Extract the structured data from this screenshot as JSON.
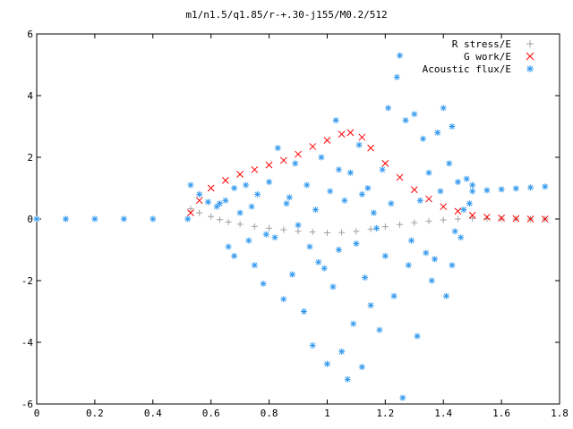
{
  "chart_data": {
    "type": "scatter",
    "title": "m1/n1.5/q1.85/r-+.30-j155/M0.2/512",
    "xlabel": "",
    "ylabel": "",
    "xlim": [
      0,
      1.8
    ],
    "ylim": [
      -6,
      6
    ],
    "xticks": [
      "0",
      "0.2",
      "0.4",
      "0.6",
      "0.8",
      "1",
      "1.2",
      "1.4",
      "1.6",
      "1.8"
    ],
    "yticks": [
      "-6",
      "-4",
      "-2",
      "0",
      "2",
      "4",
      "6"
    ],
    "grid": false,
    "legend_position": "top-right",
    "colors": {
      "r_stress": "#a0a0a0",
      "g_work": "#ff0000",
      "acoustic_flux": "#3399ee"
    },
    "series": [
      {
        "name": "R stress/E",
        "marker": "+",
        "points": [
          [
            0.53,
            0.33
          ],
          [
            0.56,
            0.2
          ],
          [
            0.6,
            0.08
          ],
          [
            0.63,
            -0.02
          ],
          [
            0.66,
            -0.1
          ],
          [
            0.7,
            -0.17
          ],
          [
            0.75,
            -0.24
          ],
          [
            0.8,
            -0.3
          ],
          [
            0.85,
            -0.35
          ],
          [
            0.9,
            -0.4
          ],
          [
            0.95,
            -0.42
          ],
          [
            1.0,
            -0.45
          ],
          [
            1.05,
            -0.44
          ],
          [
            1.1,
            -0.4
          ],
          [
            1.15,
            -0.33
          ],
          [
            1.2,
            -0.25
          ],
          [
            1.25,
            -0.18
          ],
          [
            1.3,
            -0.12
          ],
          [
            1.35,
            -0.07
          ],
          [
            1.4,
            -0.03
          ],
          [
            1.45,
            0.0
          ],
          [
            1.5,
            0.02
          ],
          [
            1.55,
            0.01
          ],
          [
            1.6,
            0.0
          ],
          [
            1.65,
            0.0
          ],
          [
            1.7,
            0.0
          ],
          [
            1.75,
            0.0
          ]
        ]
      },
      {
        "name": "G work/E",
        "marker": "x",
        "points": [
          [
            0.53,
            0.2
          ],
          [
            0.56,
            0.6
          ],
          [
            0.6,
            1.0
          ],
          [
            0.65,
            1.25
          ],
          [
            0.7,
            1.45
          ],
          [
            0.75,
            1.6
          ],
          [
            0.8,
            1.75
          ],
          [
            0.85,
            1.9
          ],
          [
            0.9,
            2.1
          ],
          [
            0.95,
            2.35
          ],
          [
            1.0,
            2.55
          ],
          [
            1.05,
            2.75
          ],
          [
            1.08,
            2.8
          ],
          [
            1.12,
            2.65
          ],
          [
            1.15,
            2.3
          ],
          [
            1.2,
            1.8
          ],
          [
            1.25,
            1.35
          ],
          [
            1.3,
            0.95
          ],
          [
            1.35,
            0.65
          ],
          [
            1.4,
            0.4
          ],
          [
            1.45,
            0.25
          ],
          [
            1.5,
            0.12
          ],
          [
            1.55,
            0.06
          ],
          [
            1.6,
            0.03
          ],
          [
            1.65,
            0.01
          ],
          [
            1.7,
            0.0
          ],
          [
            1.75,
            0.0
          ]
        ]
      },
      {
        "name": "Acoustic flux/E",
        "marker": "*",
        "points": [
          [
            0.0,
            0.0
          ],
          [
            0.1,
            0.0
          ],
          [
            0.2,
            0.0
          ],
          [
            0.3,
            0.0
          ],
          [
            0.4,
            0.0
          ],
          [
            0.52,
            0.0
          ],
          [
            0.53,
            1.1
          ],
          [
            0.56,
            0.8
          ],
          [
            0.59,
            0.55
          ],
          [
            0.62,
            0.4
          ],
          [
            1.5,
            0.9
          ],
          [
            1.55,
            0.93
          ],
          [
            1.6,
            0.96
          ],
          [
            1.65,
            0.99
          ],
          [
            1.7,
            1.02
          ],
          [
            1.75,
            1.05
          ],
          [
            0.65,
            0.6
          ],
          [
            0.66,
            -0.9
          ],
          [
            0.68,
            -1.2
          ],
          [
            0.7,
            0.2
          ],
          [
            0.72,
            1.1
          ],
          [
            0.73,
            -0.7
          ],
          [
            0.75,
            -1.5
          ],
          [
            0.76,
            0.8
          ],
          [
            0.78,
            -2.1
          ],
          [
            0.8,
            1.2
          ],
          [
            0.82,
            -0.6
          ],
          [
            0.83,
            2.3
          ],
          [
            0.85,
            -2.6
          ],
          [
            0.86,
            0.5
          ],
          [
            0.88,
            -1.8
          ],
          [
            0.89,
            1.8
          ],
          [
            0.9,
            -0.2
          ],
          [
            0.92,
            -3.0
          ],
          [
            0.93,
            1.1
          ],
          [
            0.95,
            -4.1
          ],
          [
            0.96,
            0.3
          ],
          [
            0.97,
            -1.4
          ],
          [
            0.98,
            2.0
          ],
          [
            1.0,
            -4.7
          ],
          [
            1.01,
            0.9
          ],
          [
            1.02,
            -2.2
          ],
          [
            1.03,
            3.2
          ],
          [
            1.04,
            -1.0
          ],
          [
            1.05,
            -4.3
          ],
          [
            1.06,
            0.6
          ],
          [
            1.07,
            -5.2
          ],
          [
            1.08,
            1.5
          ],
          [
            1.09,
            -3.4
          ],
          [
            1.1,
            -0.8
          ],
          [
            1.11,
            2.4
          ],
          [
            1.12,
            -4.8
          ],
          [
            1.13,
            -1.9
          ],
          [
            1.14,
            1.0
          ],
          [
            1.15,
            -2.8
          ],
          [
            1.16,
            0.2
          ],
          [
            1.18,
            -3.6
          ],
          [
            1.19,
            1.6
          ],
          [
            1.2,
            -1.2
          ],
          [
            1.21,
            3.6
          ],
          [
            1.23,
            -2.5
          ],
          [
            1.24,
            4.6
          ],
          [
            1.25,
            5.3
          ],
          [
            1.26,
            -5.8
          ],
          [
            1.27,
            3.2
          ],
          [
            1.28,
            -1.5
          ],
          [
            1.3,
            3.4
          ],
          [
            1.31,
            -3.8
          ],
          [
            1.32,
            0.6
          ],
          [
            1.33,
            2.6
          ],
          [
            1.34,
            -1.1
          ],
          [
            1.35,
            1.5
          ],
          [
            1.36,
            -2.0
          ],
          [
            1.38,
            2.8
          ],
          [
            1.39,
            0.9
          ],
          [
            1.4,
            3.6
          ],
          [
            1.41,
            -2.5
          ],
          [
            1.42,
            1.8
          ],
          [
            1.43,
            3.0
          ],
          [
            1.44,
            -0.4
          ],
          [
            1.45,
            1.2
          ],
          [
            1.46,
            -0.6
          ],
          [
            0.63,
            0.5
          ],
          [
            0.68,
            1.0
          ],
          [
            0.74,
            0.4
          ],
          [
            0.79,
            -0.5
          ],
          [
            0.87,
            0.7
          ],
          [
            0.94,
            -0.9
          ],
          [
            0.99,
            -1.6
          ],
          [
            1.04,
            1.6
          ],
          [
            1.12,
            0.8
          ],
          [
            1.17,
            -0.3
          ],
          [
            1.22,
            0.5
          ],
          [
            1.29,
            -0.7
          ],
          [
            1.37,
            -1.3
          ],
          [
            1.43,
            -1.5
          ],
          [
            1.47,
            0.3
          ],
          [
            1.48,
            1.3
          ],
          [
            1.49,
            0.5
          ],
          [
            1.5,
            1.1
          ]
        ]
      }
    ]
  }
}
